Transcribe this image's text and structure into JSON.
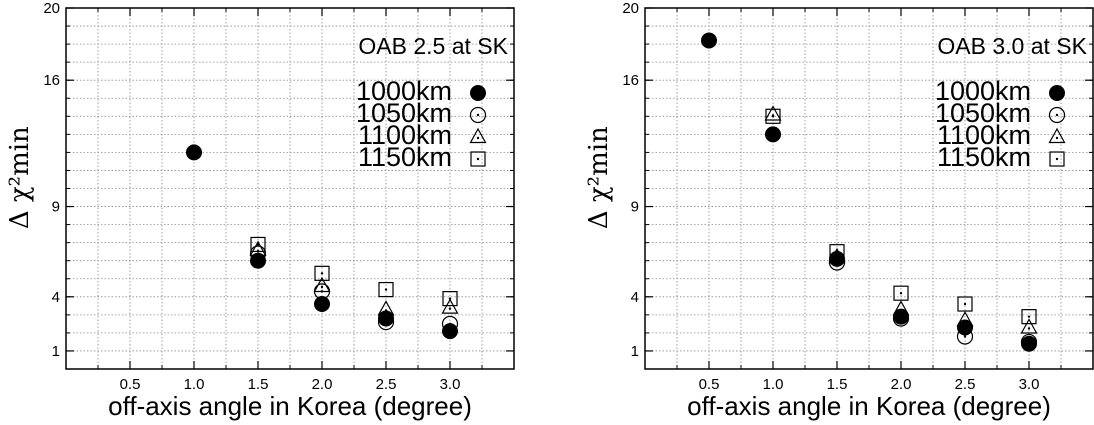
{
  "chart_data": [
    {
      "type": "scatter",
      "title": "OAB 2.5 at SK",
      "xlabel": "off-axis angle in Korea (degree)",
      "ylabel": "Δ χ²min",
      "xlim": [
        0,
        3.5
      ],
      "ylim": [
        0,
        20
      ],
      "xticks": [
        "0.5",
        "1.0",
        "1.5",
        "2.0",
        "2.5",
        "3.0"
      ],
      "yticks": [
        "1",
        "4",
        "9",
        "16",
        "20"
      ],
      "ytick_values": [
        1,
        4,
        9,
        16,
        20
      ],
      "grid": true,
      "legend_position": "top-right",
      "series": [
        {
          "name": "1000km",
          "marker": "filled-circle",
          "x": [
            1.0,
            1.5,
            2.0,
            2.5,
            3.0
          ],
          "y": [
            12.0,
            6.0,
            3.6,
            2.8,
            2.1
          ]
        },
        {
          "name": "1050km",
          "marker": "open-circle-dot",
          "x": [
            1.5,
            2.0,
            2.5,
            3.0
          ],
          "y": [
            6.4,
            4.3,
            2.6,
            2.5
          ]
        },
        {
          "name": "1100km",
          "marker": "triangle-dot",
          "x": [
            1.5,
            2.0,
            2.5,
            3.0
          ],
          "y": [
            6.6,
            4.6,
            3.3,
            3.4
          ]
        },
        {
          "name": "1150km",
          "marker": "square-dot",
          "x": [
            1.5,
            2.0,
            2.5,
            3.0
          ],
          "y": [
            6.9,
            5.3,
            4.4,
            3.9
          ]
        }
      ]
    },
    {
      "type": "scatter",
      "title": "OAB 3.0 at SK",
      "xlabel": "off-axis angle in Korea (degree)",
      "ylabel": "Δ χ²min",
      "xlim": [
        0,
        3.5
      ],
      "ylim": [
        0,
        20
      ],
      "xticks": [
        "0.5",
        "1.0",
        "1.5",
        "2.0",
        "2.5",
        "3.0"
      ],
      "yticks": [
        "1",
        "4",
        "9",
        "16",
        "20"
      ],
      "ytick_values": [
        1,
        4,
        9,
        16,
        20
      ],
      "grid": true,
      "legend_position": "top-right",
      "series": [
        {
          "name": "1000km",
          "marker": "filled-circle",
          "x": [
            0.5,
            1.0,
            1.5,
            2.0,
            2.5,
            3.0
          ],
          "y": [
            18.2,
            13.0,
            6.1,
            2.9,
            2.3,
            1.4
          ]
        },
        {
          "name": "1050km",
          "marker": "open-circle-dot",
          "x": [
            1.5,
            2.0,
            2.5,
            3.0
          ],
          "y": [
            5.9,
            2.8,
            1.8,
            1.5
          ]
        },
        {
          "name": "1100km",
          "marker": "triangle-dot",
          "x": [
            1.0,
            1.5,
            2.0,
            2.5,
            3.0
          ],
          "y": [
            14.1,
            6.2,
            3.3,
            2.7,
            2.3
          ]
        },
        {
          "name": "1150km",
          "marker": "square-dot",
          "x": [
            1.0,
            1.5,
            2.0,
            2.5,
            3.0
          ],
          "y": [
            14.0,
            6.5,
            4.2,
            3.6,
            2.9
          ]
        }
      ]
    }
  ]
}
